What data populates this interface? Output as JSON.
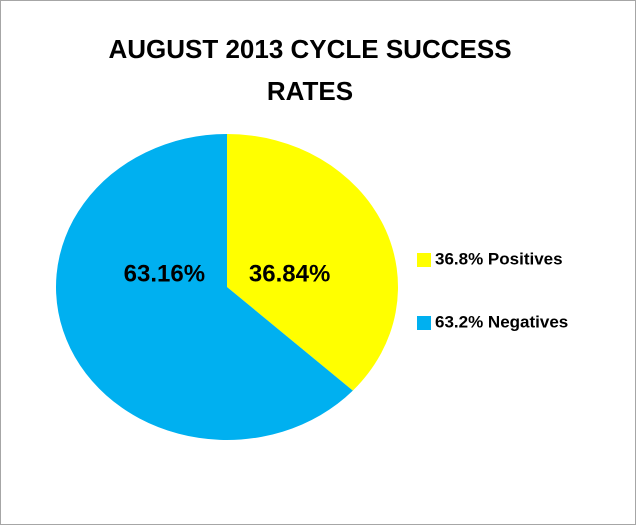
{
  "chart_data": {
    "type": "pie",
    "title": "AUGUST 2013 CYCLE SUCCESS RATES",
    "categories": [
      "36.8% Positives",
      "63.2% Negatives"
    ],
    "values": [
      36.84,
      63.16
    ],
    "value_labels": [
      "36.84%",
      "63.16%"
    ],
    "colors": [
      "#ffff00",
      "#00b0f0"
    ],
    "legend": "right"
  }
}
